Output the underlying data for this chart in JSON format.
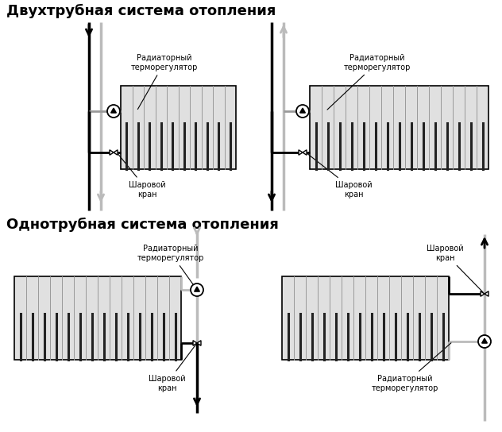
{
  "title1": "Двухтрубная система отопления",
  "title2": "Однотрубная система отопления",
  "label_thermoreg": "Радиаторный\nтерморегулятор",
  "label_ballvalve": "Шаровой\nкран",
  "bg_color": "#ffffff",
  "black": "#000000",
  "gray": "#999999",
  "lgray": "#bbbbbb",
  "rad_fill": "#e0e0e0",
  "rad_edge": "#000000",
  "title_fontsize": 13,
  "label_fontsize": 7
}
